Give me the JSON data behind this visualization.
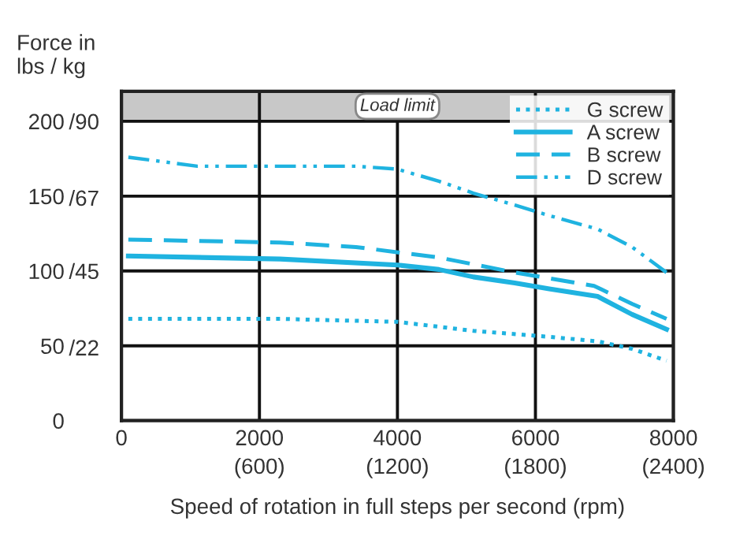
{
  "chart_data": {
    "type": "line",
    "xlabel": "Speed of rotation in full steps per second (rpm)",
    "ylabel": "Force in\nlbs / kg",
    "xlim": [
      0,
      8000
    ],
    "ylim": [
      0,
      220
    ],
    "xticks": [
      0,
      2000,
      4000,
      6000,
      8000
    ],
    "x2lim": [
      0,
      2400
    ],
    "x2ticks": [
      {
        "value": 600,
        "label": "(600)"
      },
      {
        "value": 1200,
        "label": "(1200)"
      },
      {
        "value": 1800,
        "label": "(1800)"
      },
      {
        "value": 2400,
        "label": "(2400)"
      }
    ],
    "yticks": [
      0,
      50,
      100,
      150,
      200
    ],
    "y2lim": [
      0,
      99
    ],
    "y2ticks": [
      {
        "value": 22,
        "label": "/22"
      },
      {
        "value": 45,
        "label": "/45"
      },
      {
        "value": 67,
        "label": "/67"
      },
      {
        "value": 90,
        "label": "/90"
      }
    ],
    "grid": true,
    "legend": "top right",
    "bands": [
      {
        "axis": "y",
        "from": 200,
        "to": 220,
        "label": "Load limit",
        "color": "#c8c8c8"
      }
    ],
    "series": [
      {
        "name": "G screw",
        "color": "#1fb3e0",
        "line_style": "dotted",
        "x": [
          100,
          2300,
          4000,
          5100,
          6200,
          6900,
          7400,
          7900
        ],
        "values": [
          68,
          68,
          66,
          60,
          56,
          53,
          48,
          40
        ]
      },
      {
        "name": "A screw",
        "color": "#1fb3e0",
        "line_style": "solid",
        "x": [
          100,
          2300,
          4000,
          4600,
          5100,
          5700,
          6200,
          6900,
          7400,
          7900
        ],
        "values": [
          110,
          108,
          104,
          101,
          96,
          92,
          88,
          83,
          71,
          61
        ]
      },
      {
        "name": "B screw",
        "color": "#1fb3e0",
        "line_style": "dashed",
        "x": [
          100,
          2300,
          3400,
          4600,
          5700,
          6850,
          7400,
          7900
        ],
        "values": [
          121,
          119,
          116,
          109,
          99,
          90,
          78,
          68
        ]
      },
      {
        "name": "D screw",
        "color": "#1fb3e0",
        "line_style": "dashdot",
        "x": [
          100,
          1100,
          2300,
          3400,
          4000,
          4600,
          5100,
          5700,
          6200,
          6900,
          7400,
          7900
        ],
        "values": [
          176,
          170,
          170,
          170,
          168,
          160,
          152,
          144,
          137,
          128,
          116,
          99
        ]
      }
    ]
  }
}
